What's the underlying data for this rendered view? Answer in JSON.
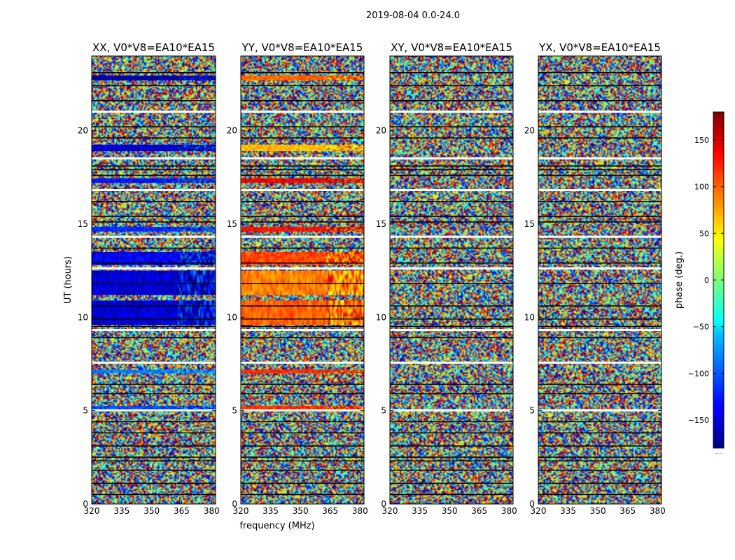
{
  "figure_title": "2019-08-04 0.0-24.0",
  "colorbar": {
    "label": "phase (deg.)",
    "ticks": [
      150,
      100,
      50,
      0,
      -50,
      -100,
      -150
    ],
    "tick_labels": [
      "150",
      "100",
      "50",
      "0",
      "−50",
      "−100",
      "−150"
    ],
    "range": [
      -180,
      180
    ],
    "colormap": "jet",
    "footer": "....."
  },
  "chart_data": [
    {
      "type": "heatmap",
      "title": "XX, V0*V8=EA10*EA15",
      "xlabel": "",
      "ylabel": "UT (hours)",
      "xlim": [
        320,
        382
      ],
      "ylim": [
        0,
        24
      ],
      "xticks": [
        320,
        335,
        350,
        365,
        380
      ],
      "yticks": [
        0,
        5,
        10,
        15,
        20
      ],
      "z_unit": "phase (deg.)",
      "coherent_bands": [
        {
          "ut": [
            22.7,
            22.95
          ],
          "phase_deg": -170
        },
        {
          "ut": [
            18.9,
            19.25
          ],
          "phase_deg": -150
        },
        {
          "ut": [
            17.2,
            17.45
          ],
          "phase_deg": -130
        },
        {
          "ut": [
            14.6,
            14.85
          ],
          "phase_deg": -120
        },
        {
          "ut": [
            12.8,
            13.5
          ],
          "phase_deg": -140
        },
        {
          "ut": [
            11.2,
            12.5
          ],
          "phase_deg": -150
        },
        {
          "ut": [
            9.6,
            10.9
          ],
          "phase_deg": -150
        },
        {
          "ut": [
            7.0,
            7.2
          ],
          "phase_deg": -90
        },
        {
          "ut": [
            4.95,
            5.25
          ],
          "phase_deg": -110
        }
      ]
    },
    {
      "type": "heatmap",
      "title": "YY, V0*V8=EA10*EA15",
      "xlabel": "frequency (MHz)",
      "ylabel": "",
      "xlim": [
        320,
        382
      ],
      "ylim": [
        0,
        24
      ],
      "xticks": [
        320,
        335,
        350,
        365,
        380
      ],
      "yticks": [
        0,
        5,
        10,
        15,
        20
      ],
      "z_unit": "phase (deg.)",
      "coherent_bands": [
        {
          "ut": [
            22.7,
            22.95
          ],
          "phase_deg": 100
        },
        {
          "ut": [
            18.9,
            19.25
          ],
          "phase_deg": 70
        },
        {
          "ut": [
            17.2,
            17.45
          ],
          "phase_deg": 140
        },
        {
          "ut": [
            14.6,
            14.85
          ],
          "phase_deg": 130
        },
        {
          "ut": [
            12.8,
            13.5
          ],
          "phase_deg": 110
        },
        {
          "ut": [
            11.2,
            12.5
          ],
          "phase_deg": 90
        },
        {
          "ut": [
            9.6,
            10.9
          ],
          "phase_deg": 100
        },
        {
          "ut": [
            7.0,
            7.2
          ],
          "phase_deg": 120
        },
        {
          "ut": [
            4.95,
            5.25
          ],
          "phase_deg": 120
        }
      ]
    },
    {
      "type": "heatmap",
      "title": "XY, V0*V8=EA10*EA15",
      "xlabel": "",
      "ylabel": "",
      "xlim": [
        320,
        382
      ],
      "ylim": [
        0,
        24
      ],
      "xticks": [
        320,
        335,
        350,
        365,
        380
      ],
      "yticks": [
        0,
        5,
        10,
        15,
        20
      ],
      "z_unit": "phase (deg.)",
      "coherent_bands": []
    },
    {
      "type": "heatmap",
      "title": "YX, V0*V8=EA10*EA15",
      "xlabel": "",
      "ylabel": "",
      "xlim": [
        320,
        382
      ],
      "ylim": [
        0,
        24
      ],
      "xticks": [
        320,
        335,
        350,
        365,
        380
      ],
      "yticks": [
        0,
        5,
        10,
        15,
        20
      ],
      "z_unit": "phase (deg.)",
      "coherent_bands": []
    }
  ]
}
